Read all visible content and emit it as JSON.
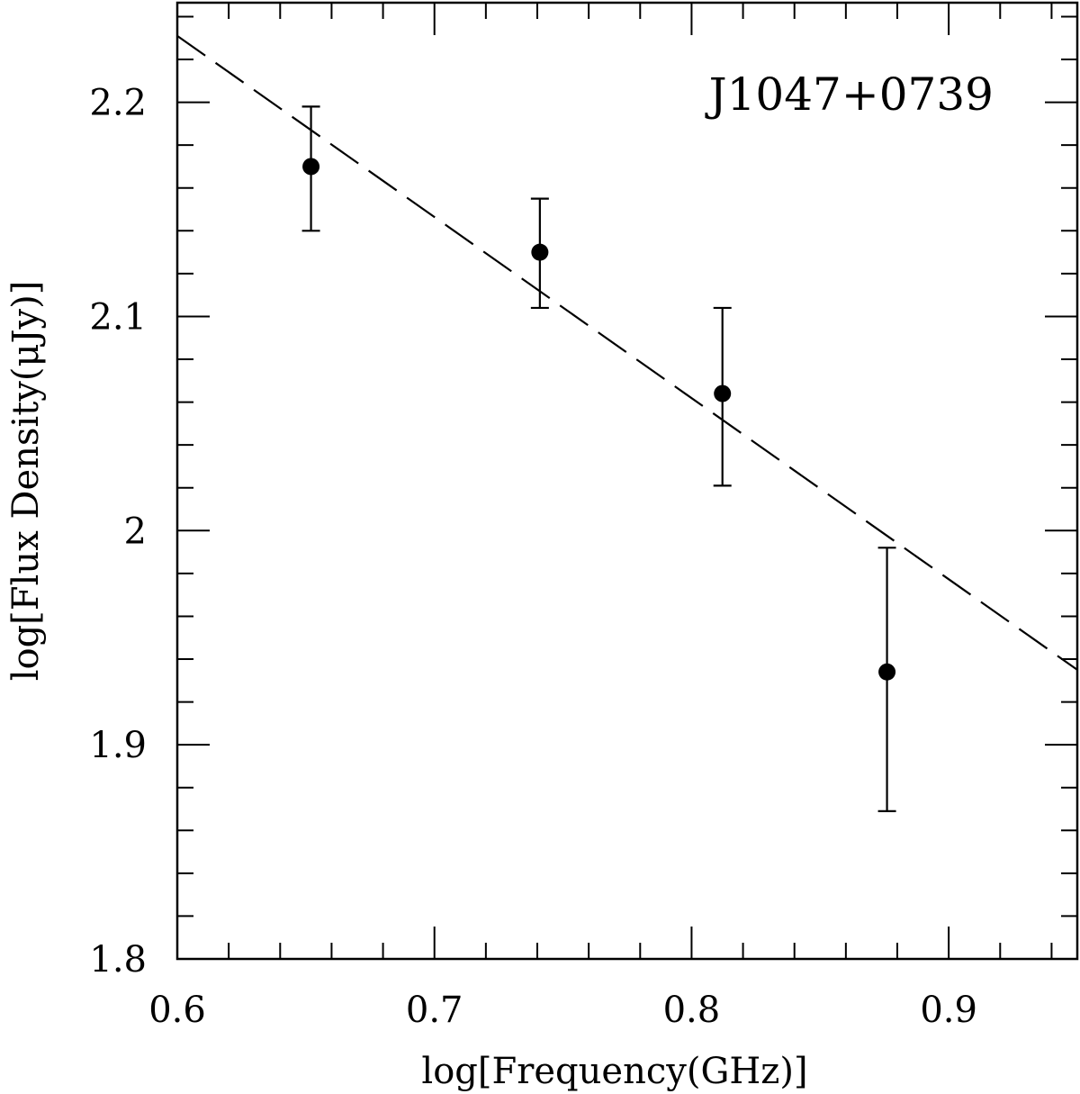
{
  "chart_data": {
    "type": "scatter",
    "title": "J1047+0739",
    "xlabel": "log[Frequency(GHz)]",
    "ylabel": "log[Flux Density(μJy)]",
    "xlim": [
      0.6,
      0.95
    ],
    "ylim": [
      1.8,
      2.2465
    ],
    "xticks": [
      0.6,
      0.7,
      0.8,
      0.9
    ],
    "xtick_labels": [
      "0.6",
      "0.7",
      "0.8",
      "0.9"
    ],
    "yticks": [
      1.8,
      1.9,
      2.0,
      2.1,
      2.2
    ],
    "ytick_labels": [
      "1.8",
      "1.9",
      "2",
      "2.1",
      "2.2"
    ],
    "x_minor_step": 0.02,
    "y_minor_step": 0.02,
    "grid": false,
    "legend": null,
    "series": [
      {
        "name": "data",
        "marker": "filled-circle",
        "x": [
          0.652,
          0.741,
          0.812,
          0.876
        ],
        "y": [
          2.17,
          2.13,
          2.064,
          1.934
        ],
        "y_err_low": [
          2.14,
          2.104,
          2.021,
          1.869
        ],
        "y_err_high": [
          2.198,
          2.155,
          2.104,
          1.992
        ]
      },
      {
        "name": "fit",
        "style": "dashed-line",
        "x": [
          0.6,
          0.95
        ],
        "y": [
          2.231,
          1.935
        ]
      }
    ],
    "annotations": [
      {
        "text": "J1047+0739",
        "position": "top-right"
      }
    ]
  },
  "colors": {
    "foreground": "#000000",
    "background": "#ffffff"
  }
}
